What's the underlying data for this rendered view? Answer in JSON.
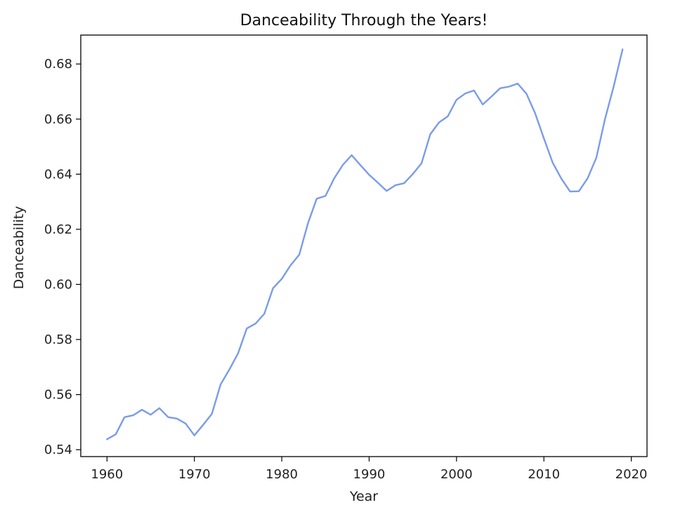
{
  "chart_data": {
    "type": "line",
    "title": "Danceability Through the Years!",
    "xlabel": "Year",
    "ylabel": "Danceability",
    "xlim": [
      1957,
      2021.8
    ],
    "ylim": [
      0.5375,
      0.6905
    ],
    "xticks": [
      1960,
      1970,
      1980,
      1990,
      2000,
      2010,
      2020
    ],
    "yticks": [
      0.54,
      0.56,
      0.58,
      0.6,
      0.62,
      0.64,
      0.66,
      0.68
    ],
    "ytick_labels": [
      "0.54",
      "0.56",
      "0.58",
      "0.60",
      "0.62",
      "0.64",
      "0.66",
      "0.68"
    ],
    "grid": false,
    "line_color": "#7a9ce8",
    "series": [
      {
        "x": [
          1960,
          1961,
          1962,
          1963,
          1964,
          1965,
          1966,
          1967,
          1968,
          1969,
          1970,
          1971,
          1972,
          1973,
          1974,
          1975,
          1976,
          1977,
          1978,
          1979,
          1980,
          1981,
          1982,
          1983,
          1984,
          1985,
          1986,
          1987,
          1988,
          1989,
          1990,
          1991,
          1992,
          1993,
          1994,
          1995,
          1996,
          1997,
          1998,
          1999,
          2000,
          2001,
          2002,
          2003,
          2004,
          2005,
          2006,
          2007,
          2008,
          2009,
          2010,
          2011,
          2012,
          2013,
          2014,
          2015,
          2016,
          2017,
          2018,
          2019
        ],
        "values": [
          0.5438,
          0.5456,
          0.5518,
          0.5525,
          0.5545,
          0.5527,
          0.5551,
          0.5518,
          0.5513,
          0.5495,
          0.5452,
          0.549,
          0.553,
          0.5637,
          0.5691,
          0.575,
          0.584,
          0.5858,
          0.5893,
          0.5986,
          0.602,
          0.6069,
          0.6108,
          0.6222,
          0.6311,
          0.6321,
          0.6385,
          0.6434,
          0.6469,
          0.6433,
          0.6398,
          0.6369,
          0.6339,
          0.636,
          0.6367,
          0.6401,
          0.644,
          0.6545,
          0.6588,
          0.661,
          0.667,
          0.6693,
          0.6704,
          0.6653,
          0.6682,
          0.6712,
          0.6718,
          0.6729,
          0.6692,
          0.6621,
          0.653,
          0.6442,
          0.6384,
          0.6337,
          0.6338,
          0.6385,
          0.646,
          0.6601,
          0.672,
          0.6853
        ]
      }
    ]
  }
}
